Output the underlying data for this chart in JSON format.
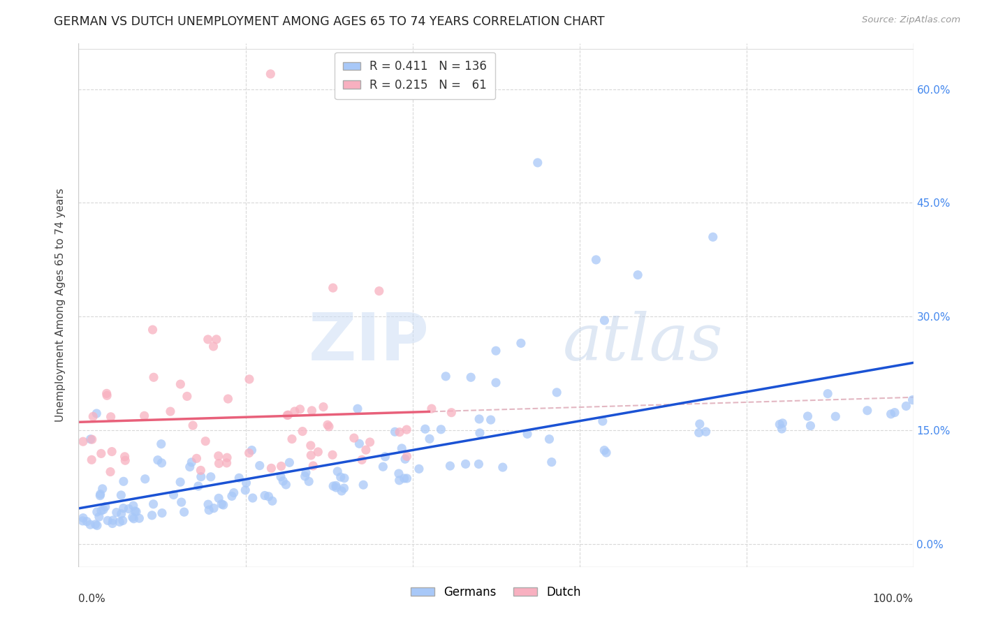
{
  "title": "GERMAN VS DUTCH UNEMPLOYMENT AMONG AGES 65 TO 74 YEARS CORRELATION CHART",
  "source": "Source: ZipAtlas.com",
  "ylabel": "Unemployment Among Ages 65 to 74 years",
  "yticks": [
    "0.0%",
    "15.0%",
    "30.0%",
    "45.0%",
    "60.0%"
  ],
  "ytick_vals": [
    0.0,
    0.15,
    0.3,
    0.45,
    0.6
  ],
  "xlim": [
    0.0,
    1.0
  ],
  "ylim": [
    -0.03,
    0.66
  ],
  "watermark_zip": "ZIP",
  "watermark_atlas": "atlas",
  "german_color": "#a8c8f8",
  "dutch_color": "#f8b0c0",
  "german_line_color": "#1a52d4",
  "dutch_line_color": "#e8607a",
  "dutch_dashed_color": "#e0b0bc",
  "background_color": "#ffffff",
  "grid_color": "#d8d8d8",
  "title_color": "#222222",
  "title_fontsize": 12.5,
  "axis_label_color": "#444444",
  "ytick_color": "#4488ee",
  "random_seed": 99,
  "legend_german_color": "#a8c8f8",
  "legend_dutch_color": "#f8b0c0"
}
